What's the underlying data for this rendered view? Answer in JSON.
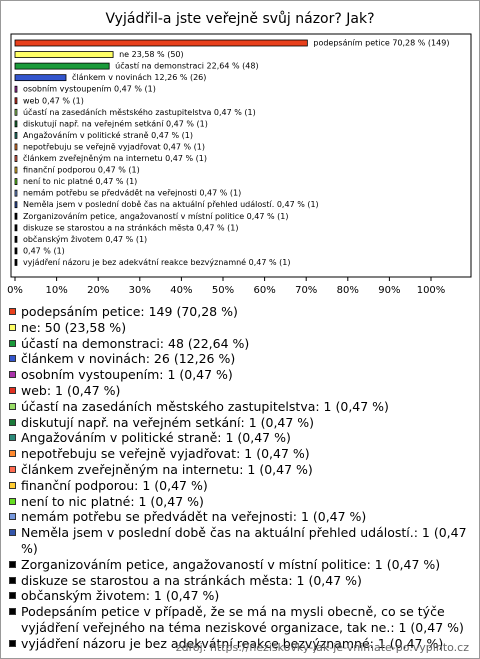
{
  "chart_data": {
    "type": "bar",
    "title": "Vyjádřil-a jste veřejně svůj názor? Jak?",
    "values": [
      70.28,
      23.58,
      22.64,
      12.26,
      0.47,
      0.47,
      0.47,
      0.47,
      0.47,
      0.47,
      0.47,
      0.47,
      0.47,
      0.47,
      0.47,
      0.47,
      0.47,
      0.47,
      0.47,
      0.47
    ],
    "value_labels": [
      "podepsáním petice 70,28 % (149)",
      "ne 23,58 % (50)",
      "účastí na demonstraci 22,64 % (48)",
      "článkem v novinách 12,26 % (26)",
      "osobním vystoupením 0,47 % (1)",
      "web 0,47 % (1)",
      "účastí na zasedáních městského zastupitelstva 0,47 % (1)",
      "diskutují např. na veřejném setkání 0,47 % (1)",
      "Angažováním v politické straně 0,47 % (1)",
      "nepotřebuju se veřejně vyjadřovat 0,47 % (1)",
      "článkem zveřejněným na internetu 0,47 % (1)",
      "finanční podporou 0,47 % (1)",
      "není to nic platné 0,47 % (1)",
      "nemám potřebu se předvádět na veřejnosti 0,47 % (1)",
      "Neměla jsem v poslední době čas na aktuální přehled událostí. 0,47 % (1)",
      "Zorganizováním petice, angažovaností v místní politice 0,47 % (1)",
      "diskuze se starostou a na stránkách města 0,47 % (1)",
      "občanským životem 0,47 % (1)",
      "0,47 % (1)",
      "vyjádření názoru je bez adekvátní reakce bezvýznamné 0,47 % (1)"
    ],
    "legend": [
      "podepsáním petice: 149 (70,28 %)",
      "ne: 50 (23,58 %)",
      "účastí na demonstraci: 48 (22,64 %)",
      "článkem v novinách: 26 (12,26 %)",
      "osobním vystoupením: 1 (0,47 %)",
      "web: 1 (0,47 %)",
      "účastí na zasedáních městského zastupitelstva: 1 (0,47 %)",
      "diskutují např. na veřejném setkání: 1 (0,47 %)",
      "Angažováním v politické straně: 1 (0,47 %)",
      "nepotřebuju se veřejně vyjadřovat: 1 (0,47 %)",
      "článkem zveřejněným na internetu: 1 (0,47 %)",
      "finanční podporou: 1 (0,47 %)",
      "není to nic platné: 1 (0,47 %)",
      "nemám potřebu se předvádět na veřejnosti: 1 (0,47 %)",
      "Neměla jsem v poslední době čas na aktuální přehled událostí.: 1 (0,47 %)",
      "Zorganizováním petice, angažovaností v místní politice: 1 (0,47 %)",
      "diskuze se starostou a na stránkách města: 1 (0,47 %)",
      "občanským životem: 1 (0,47 %)",
      "Podepsáním petice v případě, že se má na mysli obecně, co se týče vyjádření veřejného na téma neziskové organizace, tak ne.: 1 (0,47 %)",
      "vyjádření názoru je bez adekvátní reakce bezvýznamné: 1 (0,47 %)"
    ],
    "colors": [
      "#e8401c",
      "#ffff66",
      "#1a9a3a",
      "#3355cc",
      "#aa33aa",
      "#e03020",
      "#99dd66",
      "#1b7a3a",
      "#2b8a7a",
      "#ff8a30",
      "#ff6a50",
      "#ffcc33",
      "#66dd22",
      "#7799dd",
      "#3355aa",
      "#000000",
      "#000000",
      "#000000",
      "#000000",
      "#000000"
    ],
    "xlim": [
      0,
      100
    ],
    "xticks": [
      {
        "value": 0,
        "label": "0%"
      },
      {
        "value": 10,
        "label": "10%"
      },
      {
        "value": 20,
        "label": "20%"
      },
      {
        "value": 30,
        "label": "30%"
      },
      {
        "value": 40,
        "label": "40%"
      },
      {
        "value": 50,
        "label": "50%"
      },
      {
        "value": 60,
        "label": "60%"
      },
      {
        "value": 70,
        "label": "70%"
      },
      {
        "value": 80,
        "label": "80%"
      },
      {
        "value": 90,
        "label": "90%"
      },
      {
        "value": 100,
        "label": "100%"
      }
    ],
    "source": "zdroj: https://neziskovky-jak-je-vnimate-po.vyplnto.cz"
  }
}
